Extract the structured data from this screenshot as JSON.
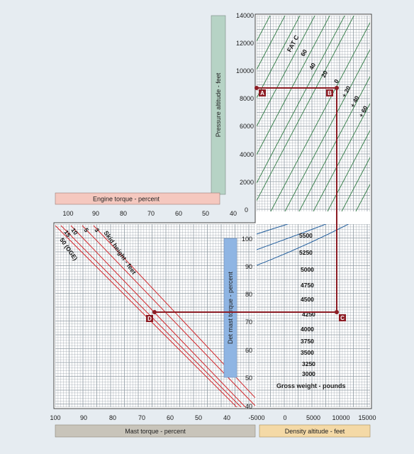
{
  "chart_data": [
    {
      "type": "line",
      "panel": "pressure-altitude",
      "ylabel": "Pressure altitude - feet",
      "y_ticks": [
        "14000",
        "12000",
        "10000",
        "8000",
        "6000",
        "4000",
        "2000",
        "0"
      ],
      "title": "FAT C",
      "series": [
        {
          "name": "60"
        },
        {
          "name": "40"
        },
        {
          "name": "20"
        },
        {
          "name": "0"
        },
        {
          "name": "+ 20"
        },
        {
          "name": "+ 40"
        },
        {
          "name": "+ 60"
        }
      ]
    },
    {
      "type": "line",
      "panel": "engine-torque",
      "xlabel": "Engine torque - percent",
      "x_ticks": [
        "100",
        "90",
        "80",
        "70",
        "60",
        "50",
        "40"
      ]
    },
    {
      "type": "line",
      "panel": "skid-height",
      "title": "Skid height - feet",
      "series": [
        {
          "name": "3"
        },
        {
          "name": "5"
        },
        {
          "name": "10"
        },
        {
          "name": "15"
        },
        {
          "name": "50 (OGE)"
        }
      ]
    },
    {
      "type": "line",
      "panel": "mast-torque",
      "xlabel": "Mast torque - percent",
      "x_ticks": [
        "100",
        "90",
        "80",
        "70",
        "60",
        "50",
        "40"
      ],
      "ylabel": "Det mast torque - percent",
      "y_ticks": [
        "100",
        "90",
        "80",
        "70",
        "60",
        "50",
        "40"
      ]
    },
    {
      "type": "line",
      "panel": "density-altitude",
      "xlabel": "Density altitude - feet",
      "x_ticks": [
        "-5000",
        "0",
        "5000",
        "10000",
        "15000"
      ],
      "title": "Gross weight - pounds",
      "series": [
        {
          "name": "5500"
        },
        {
          "name": "5250"
        },
        {
          "name": "5000"
        },
        {
          "name": "4750"
        },
        {
          "name": "4500"
        },
        {
          "name": "4250"
        },
        {
          "name": "4000"
        },
        {
          "name": "3750"
        },
        {
          "name": "3500"
        },
        {
          "name": "3250"
        },
        {
          "name": "3000"
        }
      ]
    }
  ],
  "markers": {
    "a": "A",
    "b": "B",
    "c": "C",
    "d": "D"
  },
  "colors": {
    "grid": "#8f9aa2",
    "line_green": "#2f7a43",
    "line_blue": "#1f5c9c",
    "line_red": "#d1262b",
    "path": "#8c1c24",
    "bg": "#e6ecf1"
  }
}
